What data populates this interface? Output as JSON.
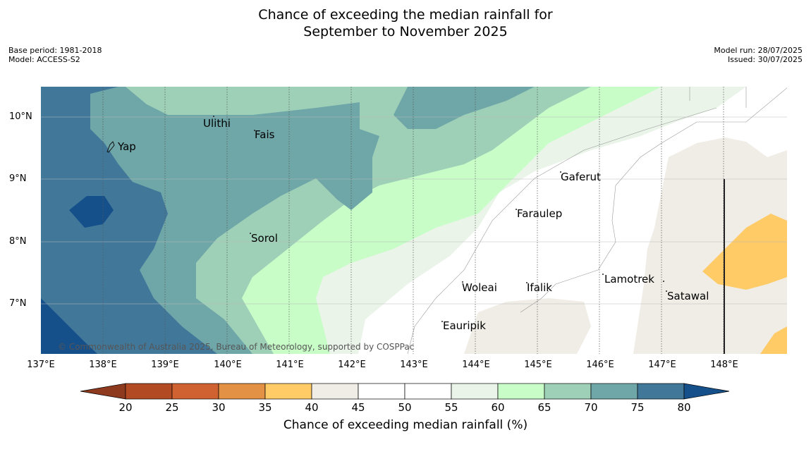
{
  "title_line1": "Chance of exceeding the median rainfall for",
  "title_line2": "September to November 2025",
  "meta_left": [
    "Base period: 1981-2018",
    "Model: ACCESS-S2"
  ],
  "meta_right": [
    "Model run: 28/07/2025",
    "Issued: 30/07/2025"
  ],
  "latitude_labels": [
    "10°N",
    "9°N",
    "8°N",
    "7°N"
  ],
  "longitude_labels": [
    "137°E",
    "138°E",
    "139°E",
    "140°E",
    "141°E",
    "142°E",
    "143°E",
    "144°E",
    "145°E",
    "146°E",
    "147°E",
    "148°E"
  ],
  "places": [
    "Ulithi",
    "Fais",
    "Yap",
    "Gaferut",
    "Faraulep",
    "Sorol",
    "Lamotrek",
    "Woleai",
    "Ifalik",
    "Satawal",
    "Eauripik"
  ],
  "copyright": "© Commonwealth of Australia 2025, Bureau of Meteorology, supported by COSPPac",
  "colorbar": {
    "title": "Chance of exceeding median rainfall (%)",
    "ticks": [
      "20",
      "25",
      "30",
      "35",
      "40",
      "45",
      "50",
      "55",
      "60",
      "65",
      "70",
      "75",
      "80"
    ],
    "colors": [
      "#8e3a1e",
      "#b24a24",
      "#cf6230",
      "#e29145",
      "#fecb66",
      "#f0ece6",
      "#ffffff",
      "#ffffff",
      "#eaf4e9",
      "#c8fdc8",
      "#9ed0b8",
      "#6fa6a8",
      "#41789a",
      "#16508a"
    ]
  }
}
